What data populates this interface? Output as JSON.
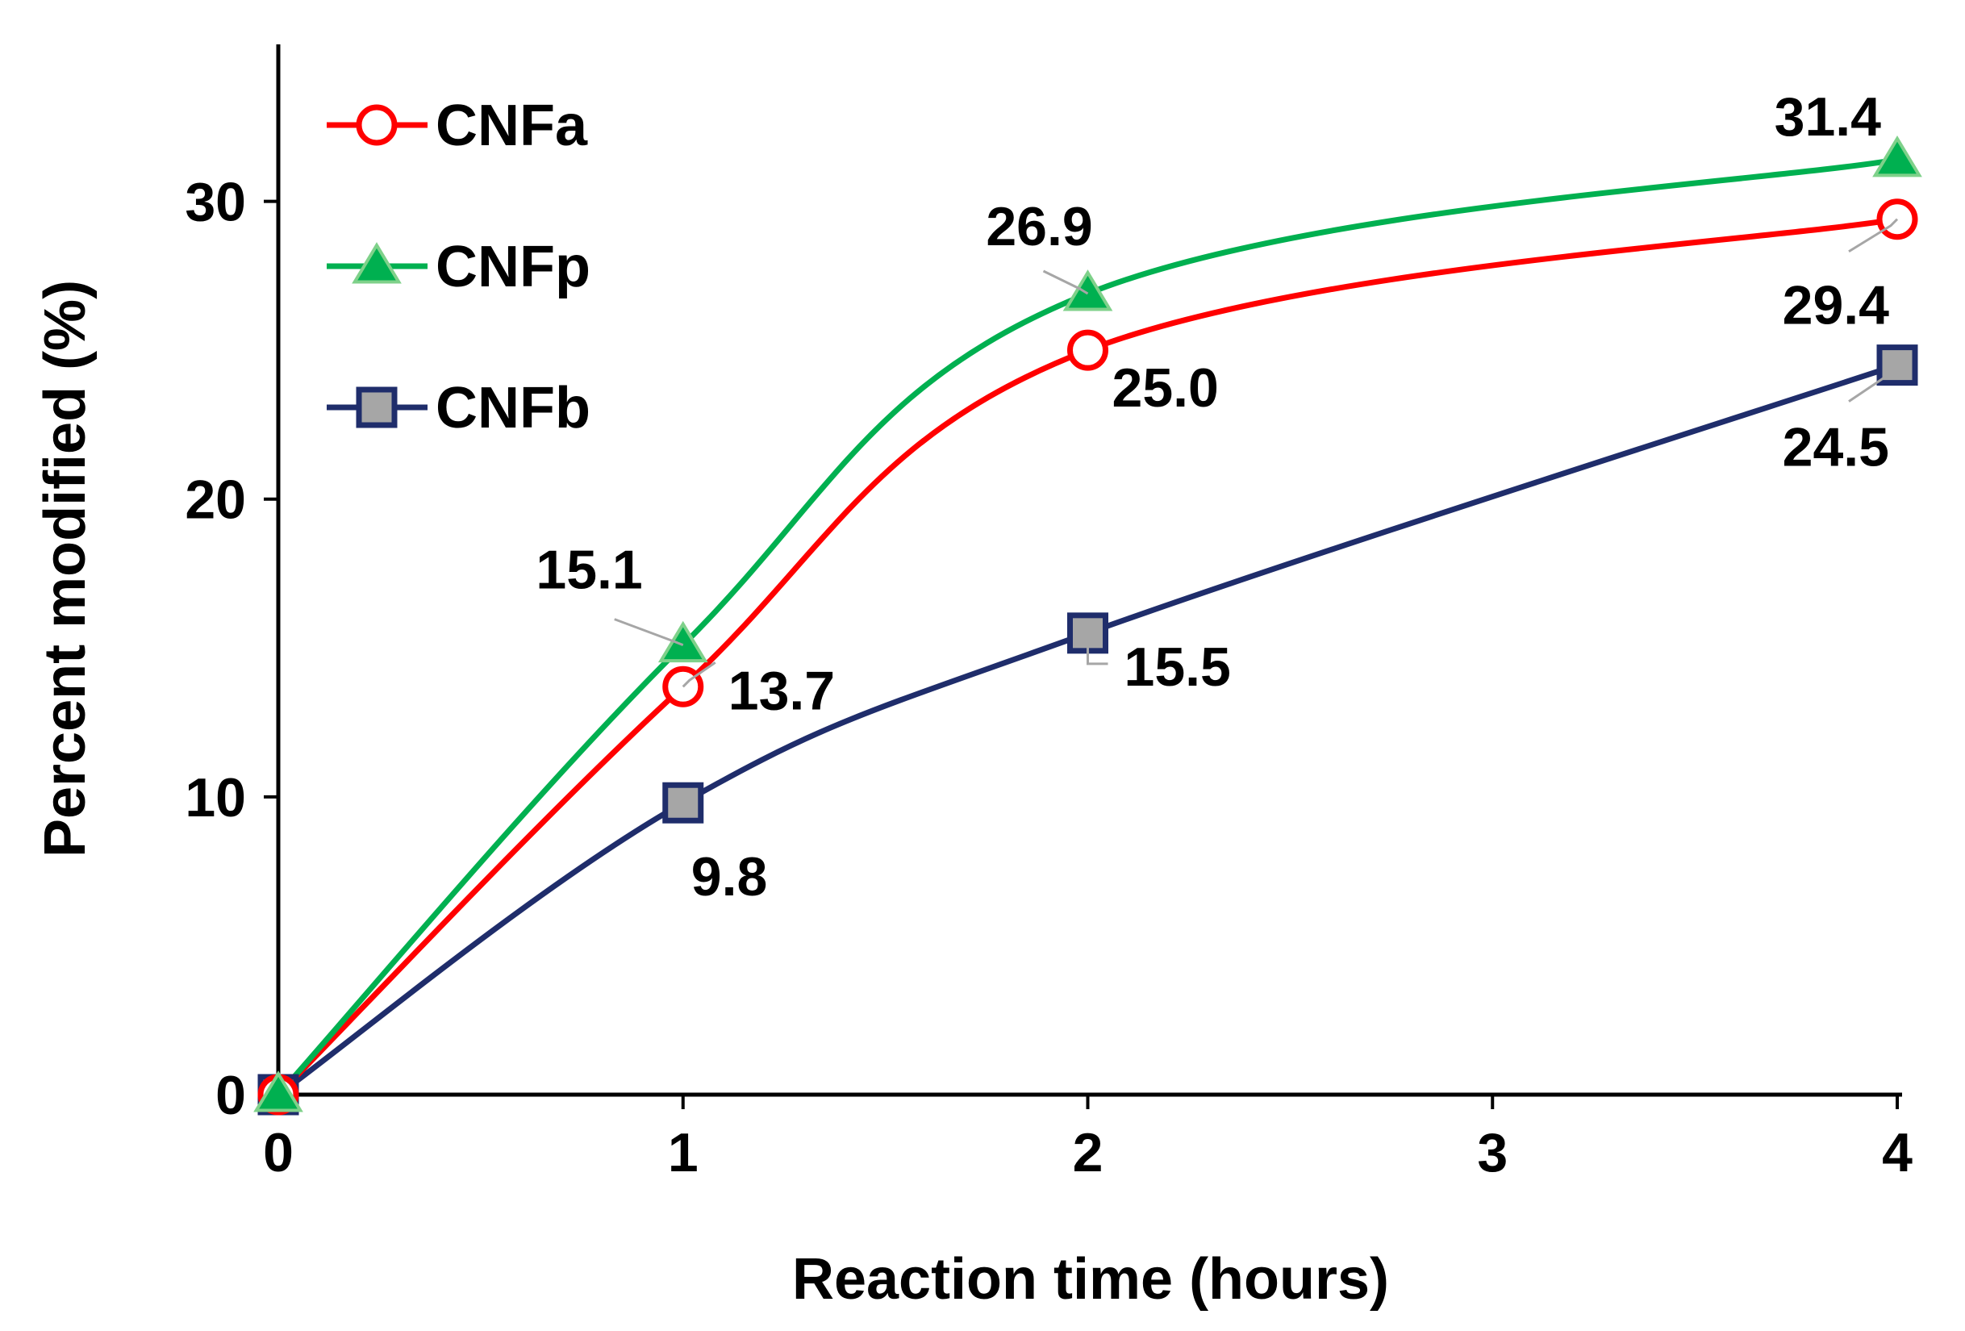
{
  "chart_data": {
    "type": "line",
    "title": "",
    "xlabel": "Reaction time (hours)",
    "ylabel": "Percent modified (%)",
    "xlim": [
      0,
      4
    ],
    "ylim": [
      0,
      35
    ],
    "x_ticks": [
      0,
      1,
      2,
      3,
      4
    ],
    "y_ticks": [
      0,
      10,
      20,
      30
    ],
    "x_tick_labels": [
      "0",
      "1",
      "2",
      "3",
      "4"
    ],
    "y_tick_labels": [
      "0",
      "10",
      "20",
      "30"
    ],
    "grid": false,
    "legend_position": "top-left",
    "series": [
      {
        "name": "CNFa",
        "color": "#ff0000",
        "marker": "circle",
        "marker_fill": "#ffffff",
        "smooth": true,
        "x": [
          0,
          1,
          2,
          4
        ],
        "values": [
          0,
          13.7,
          25.0,
          29.4
        ],
        "labels": [
          "",
          "13.7",
          "25.0",
          "29.4"
        ]
      },
      {
        "name": "CNFp",
        "color": "#00b050",
        "marker": "triangle",
        "marker_fill": "#00b050",
        "smooth": true,
        "x": [
          0,
          1,
          2,
          4
        ],
        "values": [
          0,
          15.1,
          26.9,
          31.4
        ],
        "labels": [
          "",
          "15.1",
          "26.9",
          "31.4"
        ]
      },
      {
        "name": "CNFb",
        "color": "#1f2d6b",
        "marker": "square",
        "marker_fill": "#a6a6a6",
        "smooth": true,
        "x": [
          0,
          1,
          2,
          4
        ],
        "values": [
          0,
          9.8,
          15.5,
          24.5
        ],
        "labels": [
          "",
          "9.8",
          "15.5",
          "24.5"
        ]
      }
    ]
  }
}
